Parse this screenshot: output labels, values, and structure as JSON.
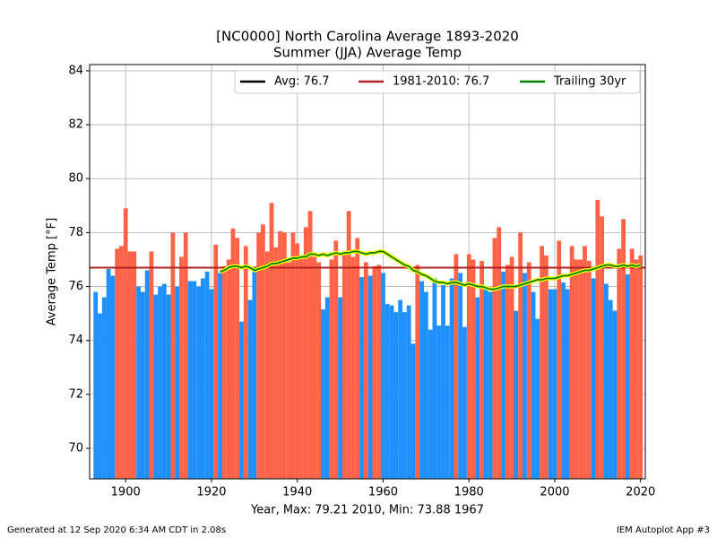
{
  "chart_data": {
    "type": "bar",
    "title": "[NC0000] North Carolina Average 1893-2020",
    "subtitle": "Summer (JJA) Average Temp",
    "x_label": "Year, Max: 79.21 2010, Min: 73.88 1967",
    "y_label": "Average Temp [°F]",
    "footer_left": "Generated at 12 Sep 2020 6:34 AM CDT in 2.08s",
    "footer_right": "IEM Autoplot App #3",
    "x": [
      1893,
      1894,
      1895,
      1896,
      1897,
      1898,
      1899,
      1900,
      1901,
      1902,
      1903,
      1904,
      1905,
      1906,
      1907,
      1908,
      1909,
      1910,
      1911,
      1912,
      1913,
      1914,
      1915,
      1916,
      1917,
      1918,
      1919,
      1920,
      1921,
      1922,
      1923,
      1924,
      1925,
      1926,
      1927,
      1928,
      1929,
      1930,
      1931,
      1932,
      1933,
      1934,
      1935,
      1936,
      1937,
      1938,
      1939,
      1940,
      1941,
      1942,
      1943,
      1944,
      1945,
      1946,
      1947,
      1948,
      1949,
      1950,
      1951,
      1952,
      1953,
      1954,
      1955,
      1956,
      1957,
      1958,
      1959,
      1960,
      1961,
      1962,
      1963,
      1964,
      1965,
      1966,
      1967,
      1968,
      1969,
      1970,
      1971,
      1972,
      1973,
      1974,
      1975,
      1976,
      1977,
      1978,
      1979,
      1980,
      1981,
      1982,
      1983,
      1984,
      1985,
      1986,
      1987,
      1988,
      1989,
      1990,
      1991,
      1992,
      1993,
      1994,
      1995,
      1996,
      1997,
      1998,
      1999,
      2000,
      2001,
      2002,
      2003,
      2004,
      2005,
      2006,
      2007,
      2008,
      2009,
      2010,
      2011,
      2012,
      2013,
      2014,
      2015,
      2016,
      2017,
      2018,
      2019,
      2020
    ],
    "values": [
      75.8,
      75.0,
      75.6,
      76.65,
      76.4,
      77.4,
      77.5,
      78.9,
      77.3,
      77.3,
      76.0,
      75.8,
      76.6,
      77.3,
      75.7,
      76.0,
      76.1,
      75.7,
      78.0,
      76.0,
      77.1,
      78.0,
      76.2,
      76.2,
      76.0,
      76.3,
      76.55,
      75.9,
      77.55,
      76.5,
      76.75,
      77.0,
      78.15,
      77.8,
      74.7,
      77.5,
      75.5,
      76.6,
      78.0,
      78.3,
      77.3,
      79.1,
      77.45,
      78.05,
      78.0,
      76.9,
      78.0,
      77.6,
      77.1,
      78.2,
      78.8,
      77.1,
      76.9,
      75.15,
      75.6,
      77.0,
      77.7,
      75.6,
      77.2,
      78.8,
      77.1,
      77.8,
      76.35,
      76.9,
      76.4,
      76.75,
      76.8,
      76.5,
      75.35,
      75.3,
      75.05,
      75.5,
      75.05,
      75.3,
      73.88,
      76.8,
      76.2,
      75.8,
      74.4,
      76.3,
      74.55,
      76.05,
      74.55,
      76.3,
      77.2,
      76.5,
      74.5,
      77.2,
      77.0,
      75.6,
      76.95,
      75.9,
      75.8,
      77.8,
      78.2,
      76.55,
      76.8,
      77.1,
      75.1,
      78.0,
      76.5,
      76.9,
      75.8,
      74.8,
      77.5,
      77.15,
      75.9,
      75.9,
      77.7,
      76.15,
      75.9,
      77.5,
      77.0,
      77.0,
      77.5,
      76.95,
      76.3,
      79.21,
      78.6,
      76.1,
      75.5,
      75.1,
      77.4,
      78.5,
      76.45,
      77.4,
      77.0,
      77.15
    ],
    "above_color": "#ff6347",
    "below_color": "#1e90ff",
    "series": [
      {
        "name": "Avg: 76.7",
        "color": "#000000",
        "value": 76.7
      },
      {
        "name": "1981-2010: 76.7",
        "color": "#b22222",
        "value": 76.7
      },
      {
        "name": "Trailing 30yr",
        "color": "#008000",
        "outline": "#ffff00",
        "x": [
          1922,
          1923,
          1924,
          1925,
          1926,
          1927,
          1928,
          1929,
          1930,
          1931,
          1932,
          1933,
          1934,
          1935,
          1936,
          1937,
          1938,
          1939,
          1940,
          1941,
          1942,
          1943,
          1944,
          1945,
          1946,
          1947,
          1948,
          1949,
          1950,
          1951,
          1952,
          1953,
          1954,
          1955,
          1956,
          1957,
          1958,
          1959,
          1960,
          1961,
          1962,
          1963,
          1964,
          1965,
          1966,
          1967,
          1968,
          1969,
          1970,
          1971,
          1972,
          1973,
          1974,
          1975,
          1976,
          1977,
          1978,
          1979,
          1980,
          1981,
          1982,
          1983,
          1984,
          1985,
          1986,
          1987,
          1988,
          1989,
          1990,
          1991,
          1992,
          1993,
          1994,
          1995,
          1996,
          1997,
          1998,
          1999,
          2000,
          2001,
          2002,
          2003,
          2004,
          2005,
          2006,
          2007,
          2008,
          2009,
          2010,
          2011,
          2012,
          2013,
          2014,
          2015,
          2016,
          2017,
          2018,
          2019,
          2020
        ],
        "values": [
          76.55,
          76.6,
          76.7,
          76.75,
          76.75,
          76.7,
          76.75,
          76.7,
          76.6,
          76.65,
          76.7,
          76.75,
          76.85,
          76.85,
          76.9,
          76.95,
          77.0,
          77.05,
          77.05,
          77.1,
          77.1,
          77.2,
          77.2,
          77.15,
          77.2,
          77.15,
          77.2,
          77.25,
          77.2,
          77.25,
          77.25,
          77.3,
          77.3,
          77.25,
          77.2,
          77.25,
          77.25,
          77.3,
          77.3,
          77.2,
          77.1,
          77.0,
          76.9,
          76.8,
          76.75,
          76.6,
          76.55,
          76.45,
          76.4,
          76.3,
          76.2,
          76.15,
          76.15,
          76.1,
          76.15,
          76.15,
          76.1,
          76.05,
          76.1,
          76.05,
          76.0,
          76.0,
          75.95,
          75.9,
          75.9,
          75.95,
          76.0,
          76.0,
          76.0,
          76.0,
          76.05,
          76.1,
          76.15,
          76.2,
          76.25,
          76.25,
          76.3,
          76.3,
          76.3,
          76.35,
          76.4,
          76.4,
          76.45,
          76.5,
          76.55,
          76.6,
          76.6,
          76.65,
          76.7,
          76.75,
          76.8,
          76.8,
          76.75,
          76.75,
          76.8,
          76.75,
          76.8,
          76.75,
          76.8
        ]
      }
    ],
    "xlim": [
      1891.6,
      2021.1
    ],
    "ylim": [
      68.87,
      84.23
    ],
    "xticks": [
      1900,
      1920,
      1940,
      1960,
      1980,
      2000,
      2020
    ],
    "yticks": [
      70,
      72,
      74,
      76,
      78,
      80,
      82,
      84
    ],
    "grid": true,
    "legend": "upper right"
  }
}
